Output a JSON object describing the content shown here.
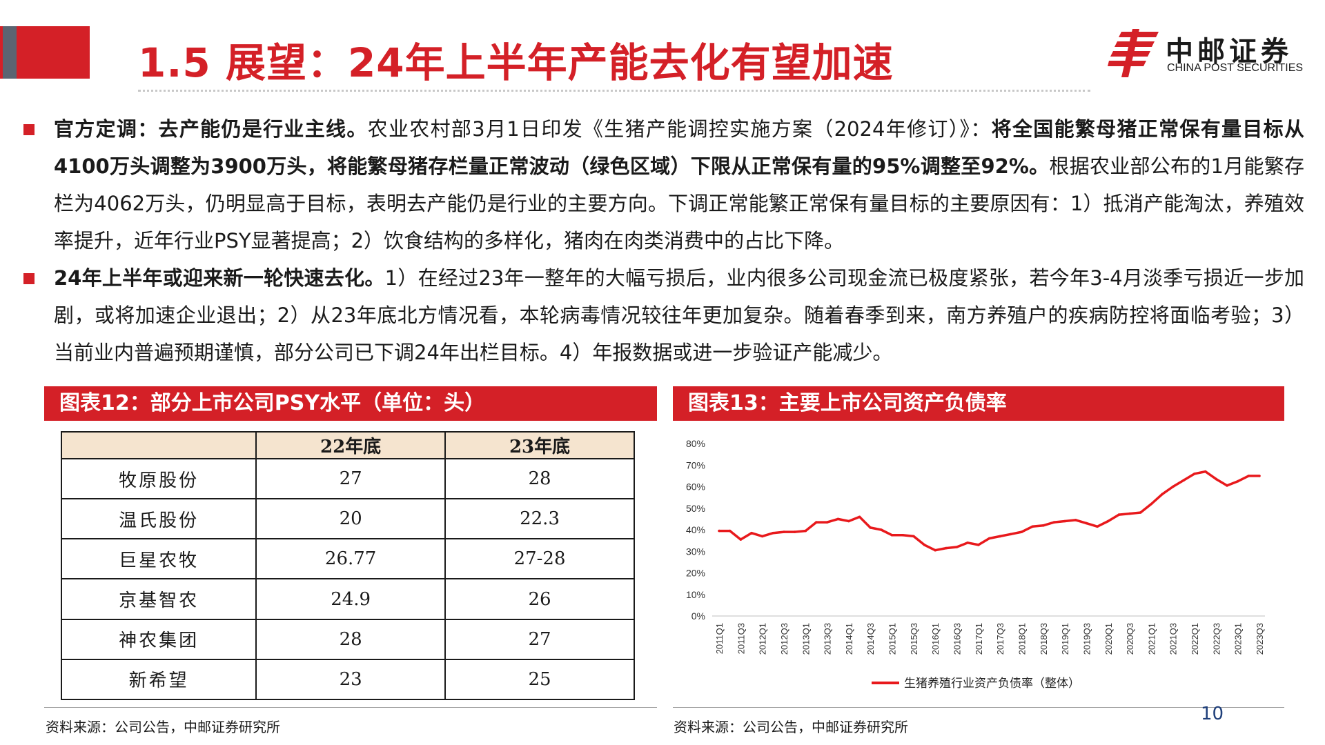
{
  "header": {
    "title": "1.5 展望：24年上半年产能去化有望加速",
    "logo_cn": "中邮证券",
    "logo_en": "CHINA POST SECURITIES"
  },
  "paragraphs": [
    {
      "bold_lead": "官方定调：去产能仍是行业主线。",
      "text_1": "农业农村部3月1日印发《生猪产能调控实施方案（2024年修订）》：",
      "bold_mid": "将全国能繁母猪正常保有量目标从4100万头调整为3900万头，将能繁母猪存栏量正常波动（绿色区域）下限从正常保有量的95%调整至92%。",
      "text_2": "根据农业部公布的1月能繁存栏为4062万头，仍明显高于目标，表明去产能仍是行业的主要方向。下调正常能繁正常保有量目标的主要原因有：1）抵消产能淘汰，养殖效率提升，近年行业PSY显著提高；2）饮食结构的多样化，猪肉在肉类消费中的占比下降。"
    },
    {
      "bold_lead": "24年上半年或迎来新一轮快速去化。",
      "text_1": "1）在经过23年一整年的大幅亏损后，业内很多公司现金流已极度紧张，若今年3-4月淡季亏损近一步加剧，或将加速企业退出；2）从23年底北方情况看，本轮病毒情况较往年更加复杂。随着春季到来，南方养殖户的疾病防控将面临考验；3）当前业内普遍预期谨慎，部分公司已下调24年出栏目标。4）年报数据或进一步验证产能减少。"
    }
  ],
  "table_section": {
    "title": "图表12：部分上市公司PSY水平（单位：头）",
    "columns": [
      "",
      "22年底",
      "23年底"
    ],
    "rows": [
      [
        "牧原股份",
        "27",
        "28"
      ],
      [
        "温氏股份",
        "20",
        "22.3"
      ],
      [
        "巨星农牧",
        "26.77",
        "27-28"
      ],
      [
        "京基智农",
        "24.9",
        "26"
      ],
      [
        "神农集团",
        "28",
        "27"
      ],
      [
        "新希望",
        "23",
        "25"
      ]
    ],
    "source": "资料来源：公司公告，中邮证券研究所"
  },
  "chart_section": {
    "title": "图表13：主要上市公司资产负债率",
    "source": "资料来源：公司公告，中邮证券研究所"
  },
  "chart_data": {
    "type": "line",
    "title": "图表13：主要上市公司资产负债率",
    "xlabel": "",
    "ylabel": "",
    "ylim": [
      0,
      80
    ],
    "yticks": [
      "0%",
      "10%",
      "20%",
      "30%",
      "40%",
      "50%",
      "60%",
      "70%",
      "80%"
    ],
    "grid": false,
    "legend_position": "bottom",
    "x": [
      "2011Q1",
      "2011Q2",
      "2011Q3",
      "2011Q4",
      "2012Q1",
      "2012Q2",
      "2012Q3",
      "2012Q4",
      "2013Q1",
      "2013Q2",
      "2013Q3",
      "2013Q4",
      "2014Q1",
      "2014Q2",
      "2014Q3",
      "2014Q4",
      "2015Q1",
      "2015Q2",
      "2015Q3",
      "2015Q4",
      "2016Q1",
      "2016Q2",
      "2016Q3",
      "2016Q4",
      "2017Q1",
      "2017Q2",
      "2017Q3",
      "2017Q4",
      "2018Q1",
      "2018Q2",
      "2018Q3",
      "2018Q4",
      "2019Q1",
      "2019Q2",
      "2019Q3",
      "2019Q4",
      "2020Q1",
      "2020Q2",
      "2020Q3",
      "2020Q4",
      "2021Q1",
      "2021Q2",
      "2021Q3",
      "2021Q4",
      "2022Q1",
      "2022Q2",
      "2022Q3",
      "2022Q4",
      "2023Q1",
      "2023Q2",
      "2023Q3"
    ],
    "x_tick_labels": [
      "2011Q1",
      "2011Q3",
      "2012Q1",
      "2012Q3",
      "2013Q1",
      "2013Q3",
      "2014Q1",
      "2014Q3",
      "2015Q1",
      "2015Q3",
      "2016Q1",
      "2016Q3",
      "2017Q1",
      "2017Q3",
      "2018Q1",
      "2018Q3",
      "2019Q1",
      "2019Q3",
      "2020Q1",
      "2020Q3",
      "2021Q1",
      "2021Q3",
      "2022Q1",
      "2022Q3",
      "2023Q1",
      "2023Q3"
    ],
    "series": [
      {
        "name": "生猪养殖行业资产负债率（整体）",
        "color": "#e8191c",
        "values": [
          39.5,
          39.5,
          35.5,
          38.5,
          37,
          38.5,
          39,
          39,
          39.5,
          43.5,
          43.5,
          45,
          44,
          46,
          41,
          40,
          37.5,
          37.5,
          37,
          33,
          30.5,
          31.5,
          32,
          34,
          33,
          36,
          37,
          38,
          39,
          41.5,
          42,
          43.5,
          44,
          44.5,
          43,
          41.5,
          44,
          47,
          47.5,
          48,
          52,
          56.5,
          60,
          63,
          66,
          67,
          63.5,
          60.5,
          62.5,
          65,
          65
        ]
      }
    ]
  },
  "footer": {
    "page_number": "10"
  }
}
